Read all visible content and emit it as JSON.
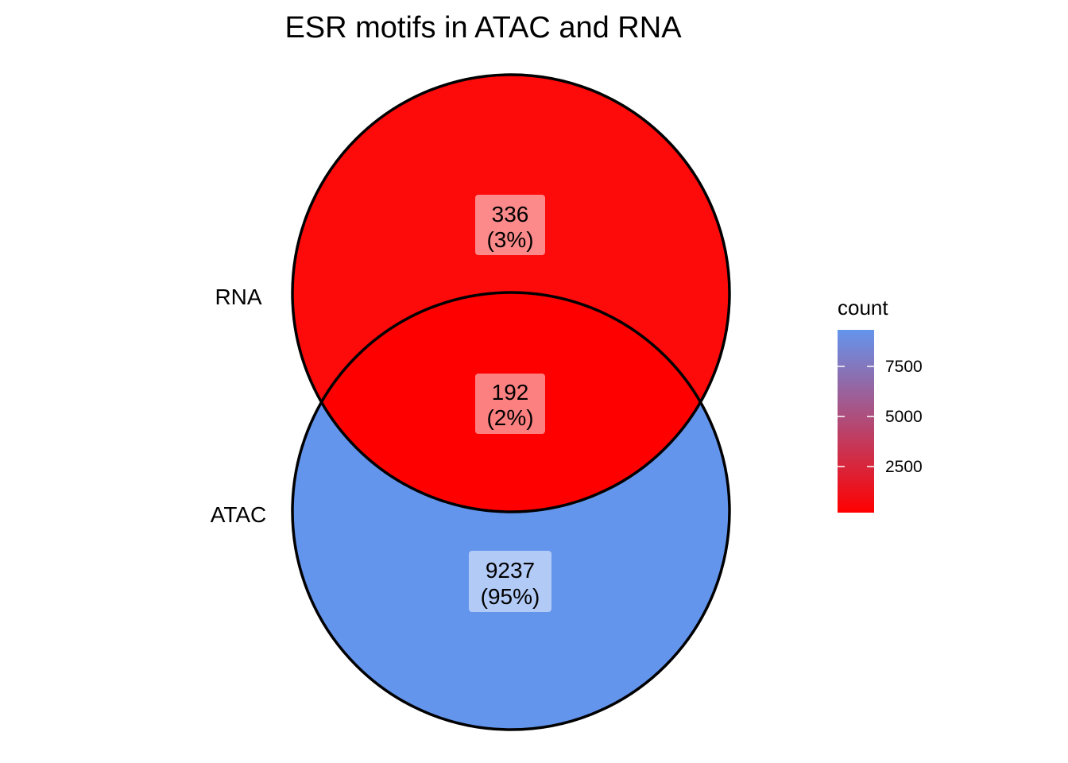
{
  "title": "ESR motifs in ATAC and RNA",
  "sets": [
    {
      "id": "rna",
      "label": "RNA"
    },
    {
      "id": "atac",
      "label": "ATAC"
    }
  ],
  "regions": [
    {
      "id": "rna_only",
      "sets": [
        "RNA"
      ],
      "count": "336",
      "percent": "(3%)",
      "fill": "#fd0a0a",
      "box": "#fc8a8a"
    },
    {
      "id": "both",
      "sets": [
        "RNA",
        "ATAC"
      ],
      "count": "192",
      "percent": "(2%)",
      "fill": "#ff0000",
      "box": "#fc8080"
    },
    {
      "id": "atac_only",
      "sets": [
        "ATAC"
      ],
      "count": "9237",
      "percent": "(95%)",
      "fill": "#6495ed",
      "box": "#b2caf6"
    }
  ],
  "legend": {
    "title": "count",
    "low_color": "#ff0000",
    "high_color": "#6495ed",
    "ticks": [
      "2500",
      "5000",
      "7500"
    ]
  }
}
